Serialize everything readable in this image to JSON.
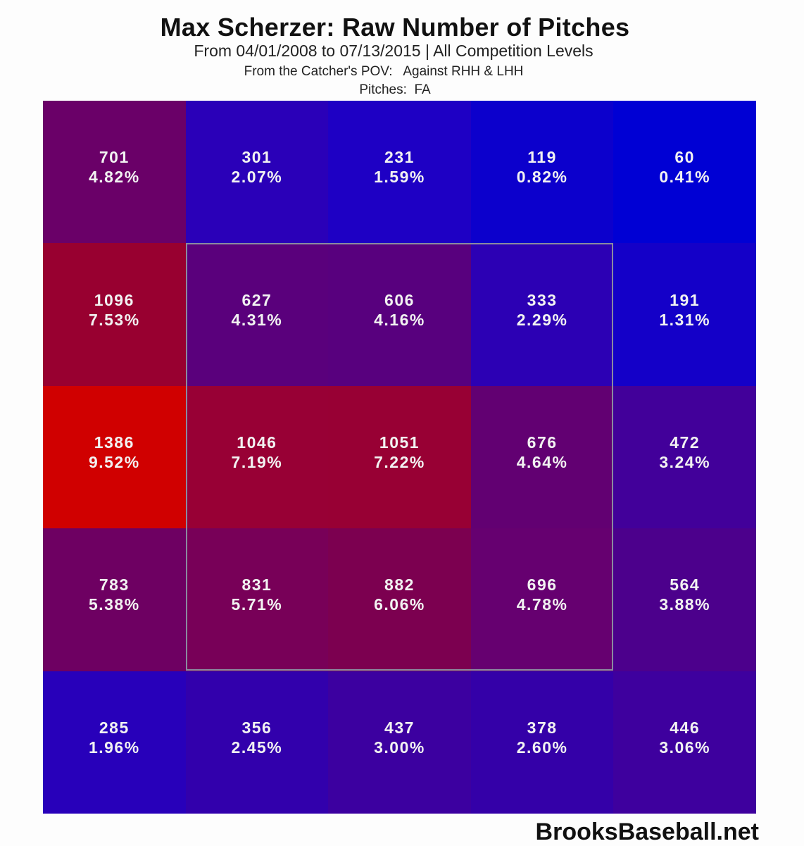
{
  "header": {
    "title": "Max Scherzer: Raw Number of Pitches",
    "subtitle": "From 04/01/2008 to 07/13/2015 | All Competition Levels",
    "pov": "From the Catcher's POV:   Against RHH & LHH",
    "pitches": "Pitches:  FA"
  },
  "credit": "BrooksBaseball.net",
  "chart_data": {
    "type": "heatmap",
    "title": "Max Scherzer: Raw Number of Pitches",
    "subtitle": "From 04/01/2008 to 07/13/2015 | All Competition Levels",
    "annotations": [
      "From the Catcher's POV:   Against RHH & LHH",
      "Pitches:  FA",
      "BrooksBaseball.net"
    ],
    "rows": 5,
    "cols": 5,
    "strike_zone": {
      "row_start": 1,
      "row_end": 3,
      "col_start": 1,
      "col_end": 3
    },
    "counts": [
      [
        701,
        301,
        231,
        119,
        60
      ],
      [
        1096,
        627,
        606,
        333,
        191
      ],
      [
        1386,
        1046,
        1051,
        676,
        472
      ],
      [
        783,
        831,
        882,
        696,
        564
      ],
      [
        285,
        356,
        437,
        378,
        446
      ]
    ],
    "percents": [
      [
        "4.82%",
        "2.07%",
        "1.59%",
        "0.82%",
        "0.41%"
      ],
      [
        "7.53%",
        "4.31%",
        "4.16%",
        "2.29%",
        "1.31%"
      ],
      [
        "9.52%",
        "7.19%",
        "7.22%",
        "4.64%",
        "3.24%"
      ],
      [
        "5.38%",
        "5.71%",
        "6.06%",
        "4.78%",
        "3.88%"
      ],
      [
        "1.96%",
        "2.45%",
        "3.00%",
        "2.60%",
        "3.06%"
      ]
    ],
    "colors": [
      [
        "#6a0068",
        "#2a00b8",
        "#1e00c4",
        "#0c00cc",
        "#0000d4"
      ],
      [
        "#980030",
        "#5a007c",
        "#58007e",
        "#2c00b4",
        "#1400c8"
      ],
      [
        "#d00000",
        "#980035",
        "#980034",
        "#620072",
        "#42009a"
      ],
      [
        "#6e0062",
        "#780058",
        "#7c0050",
        "#660070",
        "#4c008c"
      ],
      [
        "#2800ba",
        "#3200ac",
        "#3c00a0",
        "#3400a8",
        "#3e009e"
      ]
    ]
  },
  "cells": [
    {
      "count": "701",
      "pct": "4.82%"
    },
    {
      "count": "301",
      "pct": "2.07%"
    },
    {
      "count": "231",
      "pct": "1.59%"
    },
    {
      "count": "119",
      "pct": "0.82%"
    },
    {
      "count": "60",
      "pct": "0.41%"
    },
    {
      "count": "1096",
      "pct": "7.53%"
    },
    {
      "count": "627",
      "pct": "4.31%"
    },
    {
      "count": "606",
      "pct": "4.16%"
    },
    {
      "count": "333",
      "pct": "2.29%"
    },
    {
      "count": "191",
      "pct": "1.31%"
    },
    {
      "count": "1386",
      "pct": "9.52%"
    },
    {
      "count": "1046",
      "pct": "7.19%"
    },
    {
      "count": "1051",
      "pct": "7.22%"
    },
    {
      "count": "676",
      "pct": "4.64%"
    },
    {
      "count": "472",
      "pct": "3.24%"
    },
    {
      "count": "783",
      "pct": "5.38%"
    },
    {
      "count": "831",
      "pct": "5.71%"
    },
    {
      "count": "882",
      "pct": "6.06%"
    },
    {
      "count": "696",
      "pct": "4.78%"
    },
    {
      "count": "564",
      "pct": "3.88%"
    },
    {
      "count": "285",
      "pct": "1.96%"
    },
    {
      "count": "356",
      "pct": "2.45%"
    },
    {
      "count": "437",
      "pct": "3.00%"
    },
    {
      "count": "378",
      "pct": "2.60%"
    },
    {
      "count": "446",
      "pct": "3.06%"
    }
  ]
}
